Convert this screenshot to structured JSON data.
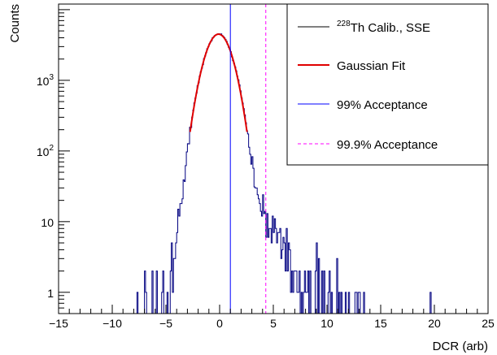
{
  "chart_data": {
    "type": "line",
    "xlabel": "DCR (arb)",
    "ylabel": "Counts",
    "xlim": [
      -15,
      25
    ],
    "ylim": [
      0.5,
      12000
    ],
    "y_scale": "log",
    "grid": false,
    "legend_position": "top-right",
    "x_ticks": [
      {
        "value": -15,
        "label": "−15"
      },
      {
        "value": -10,
        "label": "−10"
      },
      {
        "value": -5,
        "label": "−5"
      },
      {
        "value": 0,
        "label": "0"
      },
      {
        "value": 5,
        "label": "5"
      },
      {
        "value": 10,
        "label": "10"
      },
      {
        "value": 15,
        "label": "15"
      },
      {
        "value": 20,
        "label": "20"
      },
      {
        "value": 25,
        "label": "25"
      }
    ],
    "y_ticks": [
      {
        "value": 1,
        "base": "1",
        "exp": ""
      },
      {
        "value": 10,
        "base": "10",
        "exp": ""
      },
      {
        "value": 100,
        "base": "10",
        "exp": "2"
      },
      {
        "value": 1000,
        "base": "10",
        "exp": "3"
      }
    ],
    "series": [
      {
        "name": "Th Calib., SSE",
        "name_superscript": "228",
        "kind": "histogram",
        "color": "#000080",
        "legend_color": "#000000",
        "peak": {
          "x": -0.1,
          "height": 4500,
          "sigma": 1.05
        },
        "bin_width": 0.1
      },
      {
        "name": "Gaussian Fit",
        "kind": "curve",
        "color": "#e00000",
        "mean": -0.1,
        "amplitude": 4500,
        "sigma": 1.05,
        "range": [
          -2.75,
          2.55
        ]
      },
      {
        "name": "99% Acceptance",
        "kind": "vline",
        "color": "#0000ff",
        "x": 1.0
      },
      {
        "name": "99.9% Acceptance",
        "kind": "vline",
        "color": "#ff00ff",
        "dashed": true,
        "x": 4.3
      }
    ]
  }
}
